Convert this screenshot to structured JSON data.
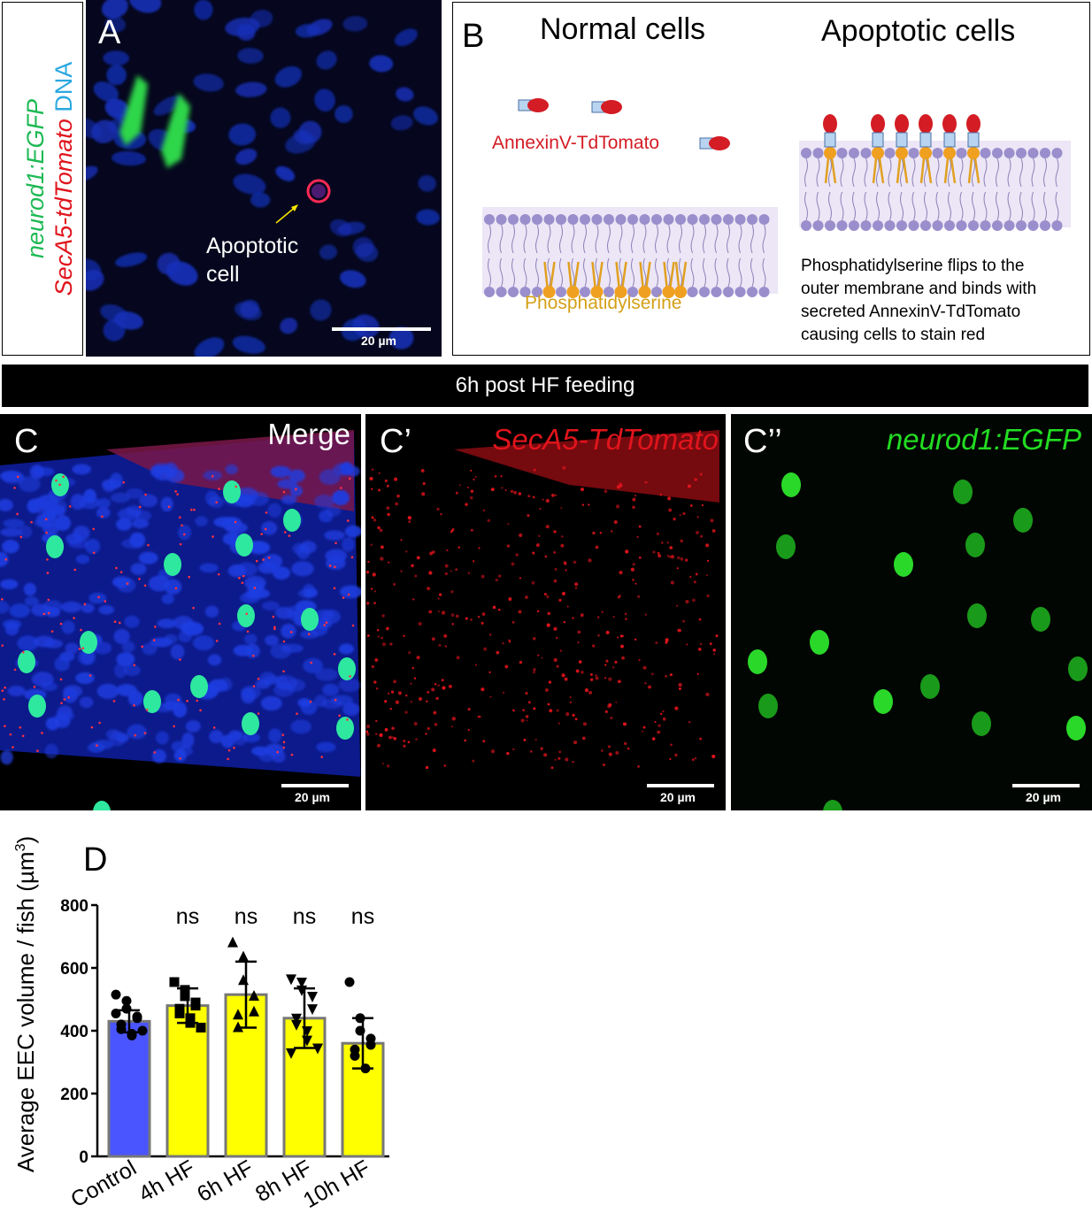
{
  "panel_a": {
    "letter": "A",
    "side_label": {
      "gene1": "neurod1:EGFP",
      "gene2": "SecA5-tdTomato",
      "dna": "DNA"
    },
    "annotation_line1": "Apoptotic",
    "annotation_line2": "cell",
    "scale": "20 µm"
  },
  "panel_b": {
    "letter": "B",
    "normal_title": "Normal cells",
    "apoptotic_title": "Apoptotic cells",
    "annexin_label": "AnnexinV-TdTomato",
    "ps_label": "Phosphatidylserine",
    "description": [
      "Phosphatidylserine flips to the",
      "outer membrane and binds with",
      "secreted AnnexinV-TdTomato",
      "causing cells to stain red"
    ]
  },
  "banner": {
    "text": "6h post HF feeding"
  },
  "panel_c": {
    "letters": [
      "C",
      "C’",
      "C’’"
    ],
    "titles": [
      "Merge",
      "SecA5-TdTomato",
      "neurod1:EGFP"
    ],
    "title_colors": [
      "#ffffff",
      "#e0141c",
      "#22dd22"
    ],
    "scale": "20 µm"
  },
  "panel_d": {
    "letter": "D"
  },
  "chart_data": {
    "type": "bar",
    "title": "",
    "ylabel_main": "Average EEC volume / fish (µm",
    "ylabel_sup": "3",
    "ylabel_end": ")",
    "ylim": [
      0,
      800
    ],
    "yticks": [
      0,
      200,
      400,
      600,
      800
    ],
    "categories": [
      "Control",
      "4h HF",
      "6h HF",
      "8h HF",
      "10h HF"
    ],
    "values": [
      430,
      480,
      515,
      440,
      360
    ],
    "sd": [
      35,
      55,
      105,
      95,
      80
    ],
    "significance": [
      "",
      "ns",
      "ns",
      "ns",
      "ns"
    ],
    "bar_colors": [
      "#4a55ff",
      "#ffff00",
      "#ffff00",
      "#ffff00",
      "#ffff00"
    ],
    "markers": [
      "circle",
      "square",
      "triangle-up",
      "triangle-down",
      "circle"
    ],
    "points": [
      [
        515,
        495,
        470,
        445,
        440,
        420,
        405,
        390,
        385,
        400,
        455
      ],
      [
        555,
        530,
        510,
        490,
        480,
        470,
        455,
        440,
        425,
        410
      ],
      [
        680,
        635,
        560,
        510,
        460,
        450,
        410
      ],
      [
        565,
        555,
        530,
        510,
        470,
        440,
        420,
        400,
        370,
        345,
        330
      ],
      [
        555,
        440,
        400,
        375,
        355,
        340,
        320,
        280
      ]
    ]
  }
}
